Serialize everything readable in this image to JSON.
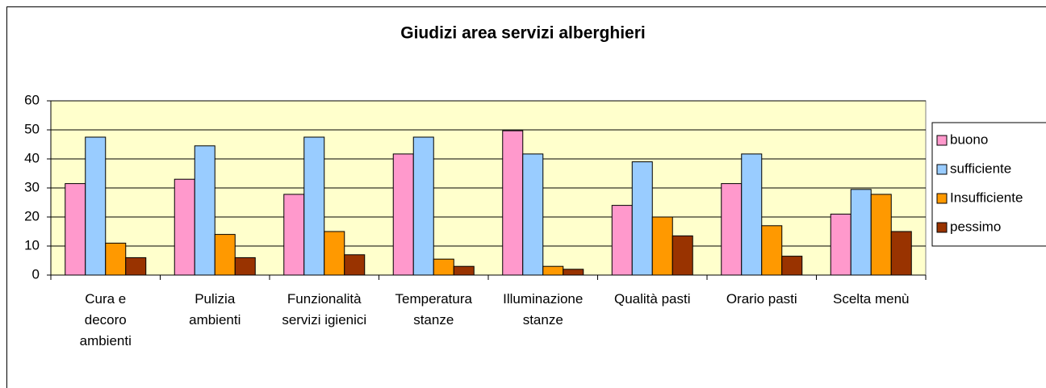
{
  "chart_data": {
    "type": "bar",
    "title": "Giudizi area servizi alberghieri",
    "categories": [
      "Cura e\ndecoro\nambienti",
      "Pulizia\nambienti",
      "Funzionalità\nservizi igienici",
      "Temperatura\nstanze",
      "Illuminazione\nstanze",
      "Qualità pasti",
      "Orario pasti",
      "Scelta menù"
    ],
    "series": [
      {
        "name": "buono",
        "color": "#ff99cc",
        "values": [
          31.5,
          33,
          27.8,
          41.7,
          49.7,
          24,
          31.5,
          21
        ]
      },
      {
        "name": "sufficiente",
        "color": "#99ccff",
        "values": [
          47.5,
          44.5,
          47.5,
          47.5,
          41.7,
          39,
          41.7,
          29.5
        ]
      },
      {
        "name": "Insufficiente",
        "color": "#ff9900",
        "values": [
          11,
          14,
          15,
          5.5,
          3,
          20,
          17,
          27.8
        ]
      },
      {
        "name": "pessimo",
        "color": "#993300",
        "values": [
          6,
          6,
          7,
          3,
          2,
          13.5,
          6.5,
          15
        ]
      }
    ],
    "ylim": [
      0,
      60
    ],
    "yticks": [
      0,
      10,
      20,
      30,
      40,
      50,
      60
    ],
    "grid": true,
    "legend": "right",
    "plot_background": "#ffffcc"
  }
}
